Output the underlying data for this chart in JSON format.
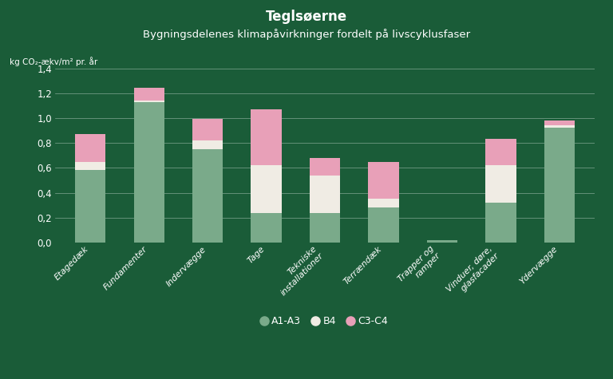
{
  "title_bold": "Teglsøerne",
  "title_sub": "Bygningsdelenes klimapåvirkninger fordelt på livscyklusfaser",
  "ylabel": "kg CO₂-ækv/m² pr. år",
  "background_color": "#1a5c38",
  "text_color": "#ffffff",
  "grid_color": "#ffffff",
  "categories": [
    "Etagedæk",
    "Fundamenter",
    "Indervægge",
    "Tage",
    "Tekniske\ninstallationer",
    "Terrændæk",
    "Trapper og\nramper",
    "Vinduer, døre,\nglasfacader",
    "Ydervægge"
  ],
  "A1A3": [
    0.58,
    1.13,
    0.75,
    0.24,
    0.24,
    0.28,
    0.02,
    0.32,
    0.92
  ],
  "B4": [
    0.07,
    0.01,
    0.07,
    0.38,
    0.3,
    0.07,
    0.0,
    0.3,
    0.02
  ],
  "C3C4": [
    0.22,
    0.1,
    0.17,
    0.45,
    0.14,
    0.3,
    0.0,
    0.21,
    0.04
  ],
  "color_A1A3": "#7aaa8a",
  "color_B4": "#f0ece4",
  "color_C3C4": "#e8a0b8",
  "ylim": [
    0,
    1.4
  ],
  "yticks": [
    0.0,
    0.2,
    0.4,
    0.6,
    0.8,
    1.0,
    1.2,
    1.4
  ],
  "ytick_labels": [
    "0,0",
    "0,2",
    "0,4",
    "0,6",
    "0,8",
    "1,0",
    "1,2",
    "1,4"
  ],
  "legend_labels": [
    "A1-A3",
    "B4",
    "C3-C4"
  ],
  "bar_width": 0.52
}
